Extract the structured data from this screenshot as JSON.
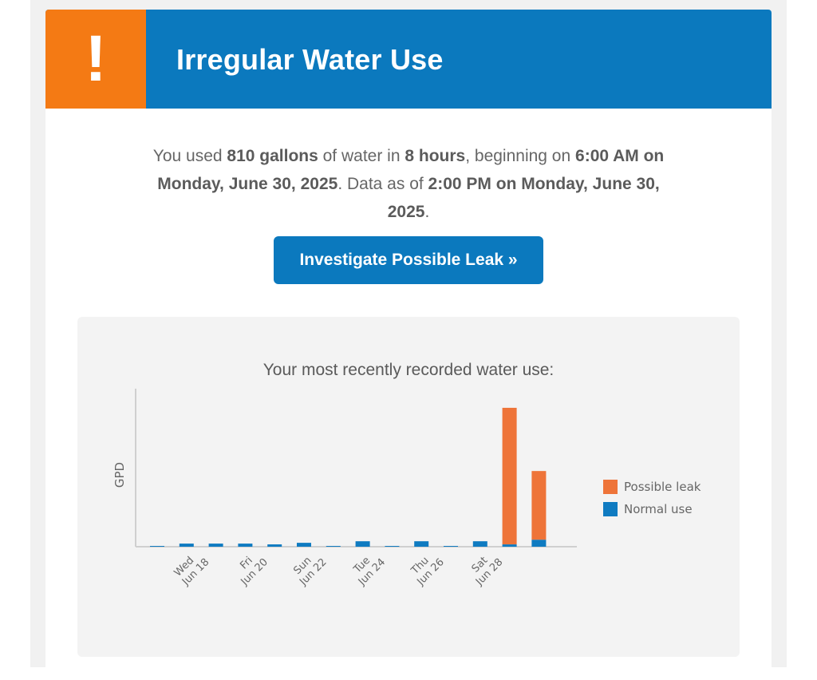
{
  "header": {
    "alert_symbol": "!",
    "title": "Irregular Water Use"
  },
  "summary": {
    "t1": "You used ",
    "gallons": "810 gallons",
    "t2": " of water in ",
    "hours": "8 hours",
    "t3": ", beginning on ",
    "start": "6:00 AM on Monday, June 30, 2025",
    "t4": ". Data as of ",
    "asof": "2:00 PM on Monday, June 30, 2025",
    "t5": "."
  },
  "cta": {
    "label": "Investigate Possible Leak »"
  },
  "colors": {
    "brand_blue": "#0b79be",
    "alert_orange": "#f47a14",
    "leak": "#ee7439",
    "normal": "#0f7bc1"
  },
  "chart_title": "Your most recently recorded water use:",
  "chart_data": {
    "type": "bar",
    "stacked": true,
    "ylabel": "GPD",
    "xlabel": "",
    "ylim": [
      0,
      180
    ],
    "tick_labels": [
      {
        "day": "Wed",
        "date": "Jun 18"
      },
      {
        "day": "Fri",
        "date": "Jun 20"
      },
      {
        "day": "Sun",
        "date": "Jun 22"
      },
      {
        "day": "Tue",
        "date": "Jun 24"
      },
      {
        "day": "Thu",
        "date": "Jun 26"
      },
      {
        "day": "Sat",
        "date": "Jun 28"
      }
    ],
    "series": [
      {
        "name": "Normal use",
        "color": "#0f7bc1",
        "values": [
          1,
          4,
          4,
          4,
          3,
          5,
          1,
          7,
          1,
          7,
          1,
          7,
          3,
          9
        ]
      },
      {
        "name": "Possible leak",
        "color": "#ee7439",
        "values": [
          0,
          0,
          0,
          0,
          0,
          0,
          0,
          0,
          0,
          0,
          0,
          0,
          175,
          88
        ]
      }
    ],
    "legend": {
      "position": "right",
      "entries": [
        "Possible leak",
        "Normal use"
      ]
    }
  }
}
